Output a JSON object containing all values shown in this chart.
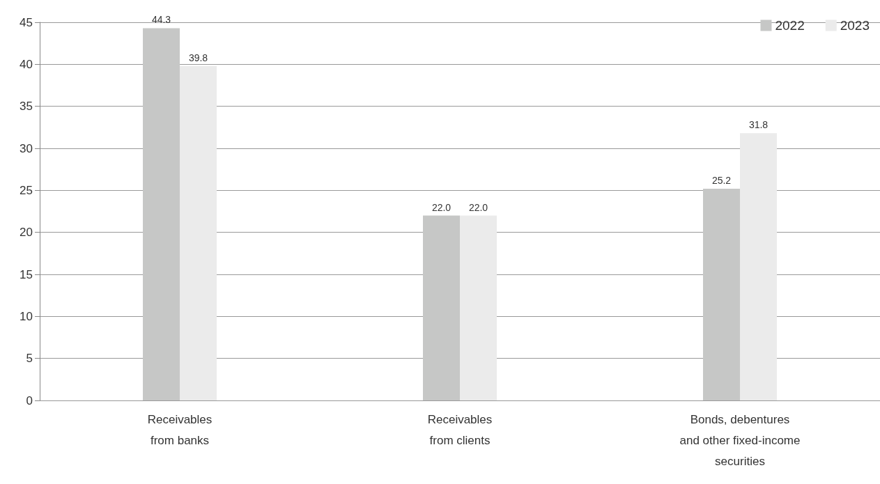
{
  "chart_data": {
    "type": "bar",
    "categories": [
      "Receivables\nfrom banks",
      "Receivables\nfrom clients",
      "Bonds, debentures\nand other fixed-income\nsecurities"
    ],
    "series": [
      {
        "name": "2022",
        "color": "#c6c7c6",
        "values": [
          44.3,
          22.0,
          25.2
        ],
        "value_labels": [
          "44.3",
          "22.0",
          "25.2"
        ]
      },
      {
        "name": "2023",
        "color": "#ebebeb",
        "values": [
          39.8,
          22.0,
          31.8
        ],
        "value_labels": [
          "39.8",
          "22.0",
          "31.8"
        ]
      }
    ],
    "ylim": [
      0,
      45
    ],
    "yticks": [
      0,
      5,
      10,
      15,
      20,
      25,
      30,
      35,
      40,
      45
    ],
    "grid": "y",
    "legend": "top right"
  }
}
